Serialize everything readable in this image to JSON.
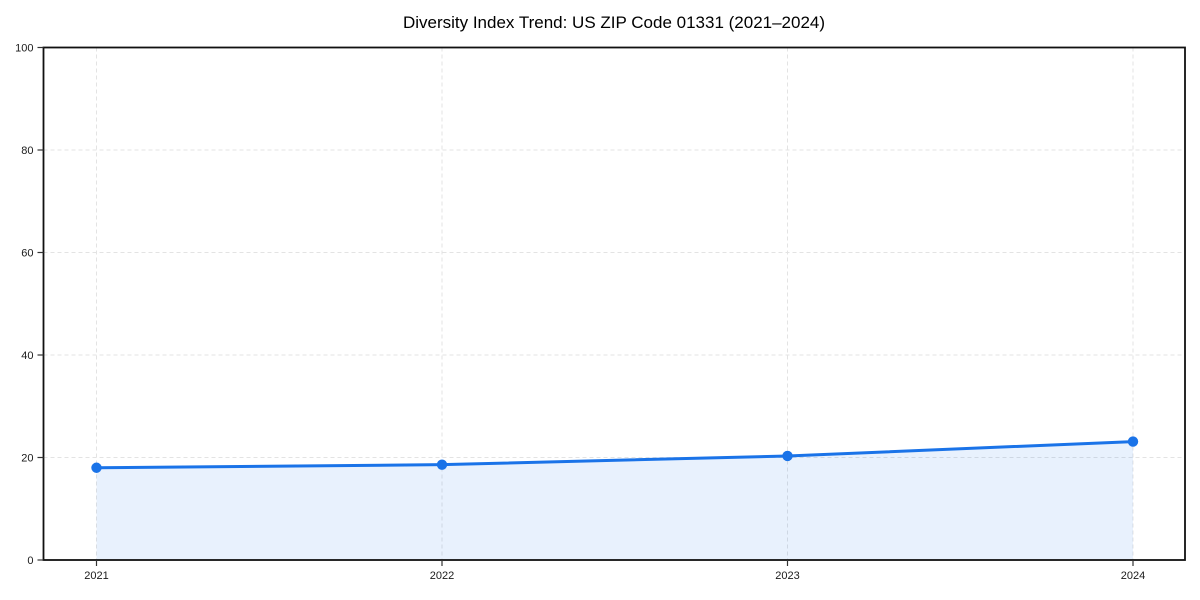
{
  "chart_data": {
    "type": "area",
    "title": "Diversity Index Trend: US ZIP Code 01331 (2021–2024)",
    "series_name": "Diversity Index",
    "x": [
      "2021",
      "2022",
      "2023",
      "2024"
    ],
    "values": [
      18.0,
      18.6,
      20.3,
      23.1
    ],
    "xlabel": "",
    "ylabel": "",
    "ylim": [
      0,
      100
    ],
    "yticks": [
      0,
      20,
      40,
      60,
      80,
      100
    ],
    "grid": true,
    "grid_style": "dashed",
    "legend": false,
    "colors": {
      "line": "#1a73e8",
      "marker": "#1a73e8",
      "fill": "rgba(26,115,232,0.10)",
      "grid": "#e3e3e3",
      "spine": "#111111",
      "tick": "#333333",
      "tick_label": "#1a1a1a",
      "background": "#ffffff"
    }
  }
}
